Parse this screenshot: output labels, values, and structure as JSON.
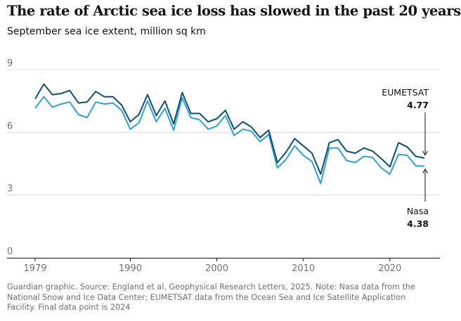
{
  "chart_data": {
    "type": "line",
    "title": "The rate of Arctic sea ice loss has slowed in the past 20 years",
    "subtitle": "September sea ice extent, million sq km",
    "ylim": [
      0,
      9
    ],
    "yticks": [
      0,
      3,
      6,
      9
    ],
    "xlim": [
      1979,
      2024
    ],
    "xticks": [
      1979,
      1990,
      2000,
      2010,
      2020
    ],
    "x": [
      1979,
      1980,
      1981,
      1982,
      1983,
      1984,
      1985,
      1986,
      1987,
      1988,
      1989,
      1990,
      1991,
      1992,
      1993,
      1994,
      1995,
      1996,
      1997,
      1998,
      1999,
      2000,
      2001,
      2002,
      2003,
      2004,
      2005,
      2006,
      2007,
      2008,
      2009,
      2010,
      2011,
      2012,
      2013,
      2014,
      2015,
      2016,
      2017,
      2018,
      2019,
      2020,
      2021,
      2022,
      2023,
      2024
    ],
    "series": [
      {
        "name": "EUMETSAT",
        "color": "#0d4d7a",
        "end_label": "EUMETSAT",
        "end_value": "4.77",
        "values": [
          7.6,
          8.3,
          7.8,
          7.85,
          8.0,
          7.4,
          7.45,
          7.95,
          7.7,
          7.7,
          7.3,
          6.5,
          6.85,
          7.8,
          6.8,
          7.5,
          6.4,
          7.9,
          6.9,
          6.9,
          6.5,
          6.65,
          7.05,
          6.15,
          6.5,
          6.25,
          5.75,
          6.1,
          4.55,
          5.05,
          5.7,
          5.35,
          5.0,
          4.0,
          5.5,
          5.65,
          5.1,
          5.0,
          5.25,
          5.1,
          4.75,
          4.35,
          5.5,
          5.3,
          4.85,
          4.77
        ]
      },
      {
        "name": "Nasa",
        "color": "#2fa0d0",
        "end_label": "Nasa",
        "end_value": "4.38",
        "values": [
          7.15,
          7.7,
          7.2,
          7.35,
          7.45,
          6.85,
          6.7,
          7.45,
          7.35,
          7.4,
          7.05,
          6.15,
          6.45,
          7.5,
          6.5,
          7.15,
          6.1,
          7.65,
          6.7,
          6.6,
          6.15,
          6.3,
          6.8,
          5.85,
          6.15,
          6.05,
          5.55,
          5.9,
          4.3,
          4.7,
          5.35,
          4.9,
          4.6,
          3.55,
          5.25,
          5.25,
          4.65,
          4.55,
          4.85,
          4.8,
          4.3,
          4.0,
          4.95,
          4.9,
          4.4,
          4.38
        ]
      }
    ]
  },
  "caption": "Guardian graphic. Source: England et al, Geophysical Research Letters, 2025. Note: Nasa data from the National Snow and Ice Data Center; EUMETSAT data from the Ocean Sea and Ice Satellite Application Facility. Final data point is 2024"
}
